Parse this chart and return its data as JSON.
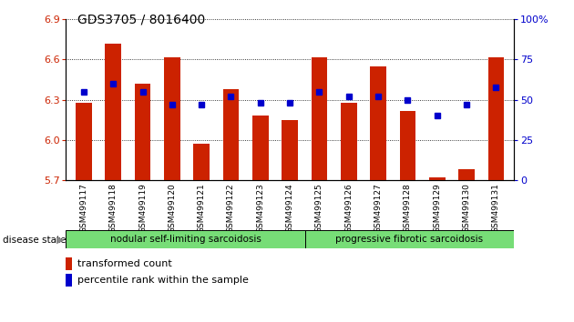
{
  "title": "GDS3705 / 8016400",
  "samples": [
    "GSM499117",
    "GSM499118",
    "GSM499119",
    "GSM499120",
    "GSM499121",
    "GSM499122",
    "GSM499123",
    "GSM499124",
    "GSM499125",
    "GSM499126",
    "GSM499127",
    "GSM499128",
    "GSM499129",
    "GSM499130",
    "GSM499131"
  ],
  "transformed_count": [
    6.28,
    6.72,
    6.42,
    6.62,
    5.97,
    6.38,
    6.18,
    6.15,
    6.62,
    6.28,
    6.55,
    6.22,
    5.72,
    5.78,
    6.62
  ],
  "percentile_rank": [
    55,
    60,
    55,
    47,
    47,
    52,
    48,
    48,
    55,
    52,
    52,
    50,
    40,
    47,
    58
  ],
  "ymin": 5.7,
  "ymax": 6.9,
  "yticks": [
    5.7,
    6.0,
    6.3,
    6.6,
    6.9
  ],
  "right_yticks": [
    0,
    25,
    50,
    75,
    100
  ],
  "group1_label": "nodular self-limiting sarcoidosis",
  "group1_count": 8,
  "group2_label": "progressive fibrotic sarcoidosis",
  "group2_count": 7,
  "group_color": "#77dd77",
  "bar_color": "#cc2200",
  "dot_color": "#0000cc",
  "bar_width": 0.55,
  "disease_state_label": "disease state",
  "legend_bar_label": "transformed count",
  "legend_dot_label": "percentile rank within the sample",
  "tick_label_color_left": "#cc2200",
  "tick_label_color_right": "#0000cc"
}
